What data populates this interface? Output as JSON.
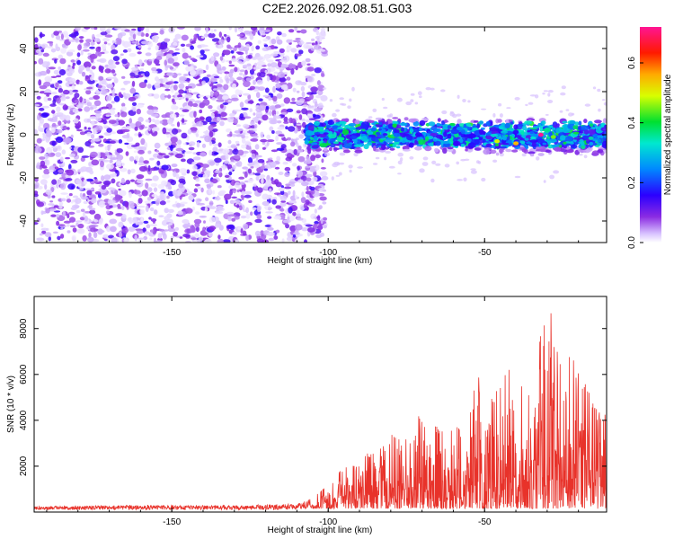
{
  "title": "C2E2.2026.092.08.51.G03",
  "chart_data": [
    {
      "type": "heatmap",
      "xlabel": "Height of straight line (km)",
      "ylabel": "Frequency (Hz)",
      "xlim": [
        -194,
        -11
      ],
      "ylim": [
        -50,
        50
      ],
      "x_ticks": [
        -150,
        -100,
        -50
      ],
      "y_ticks": [
        -40,
        -20,
        0,
        20,
        40
      ],
      "grid": false,
      "colorbar": {
        "label": "Normalized spectral amplitude",
        "range": [
          0,
          0.72
        ],
        "ticks": [
          0.0,
          0.2,
          0.4,
          0.6
        ]
      },
      "description_values": {
        "diffuse_noise_region_x": [
          -194,
          -107
        ],
        "signal_band_x": [
          -107,
          -11
        ],
        "signal_band_center_y": 0,
        "signal_band_halfwidth_y": 6,
        "peak_amplitude": 0.72
      }
    },
    {
      "type": "line",
      "xlabel": "Height of straight line (km)",
      "ylabel": "SNR (10 * v/v)",
      "xlim": [
        -194,
        -11
      ],
      "ylim": [
        0,
        9400
      ],
      "x_ticks": [
        -150,
        -100,
        -50
      ],
      "y_ticks": [
        2000,
        4000,
        6000,
        8000
      ],
      "grid": false,
      "series": [
        {
          "color": "#e8322a",
          "envelope": {
            "x": [
              -194,
              -160,
              -130,
              -110,
              -105,
              -100,
              -95,
              -90,
              -85,
              -80,
              -75,
              -70,
              -65,
              -60,
              -55,
              -52,
              -50,
              -45,
              -40,
              -35,
              -32,
              -29,
              -25,
              -20,
              -15,
              -11
            ],
            "y": [
              250,
              300,
              300,
              350,
              600,
              1200,
              2000,
              2300,
              2800,
              3400,
              3300,
              4700,
              3800,
              3700,
              4000,
              7000,
              4300,
              5800,
              6800,
              5000,
              8800,
              9300,
              7200,
              6500,
              5000,
              4500
            ]
          }
        }
      ]
    }
  ],
  "colors": {
    "line": "#e8322a",
    "frame": "#000000",
    "background": "#ffffff"
  }
}
